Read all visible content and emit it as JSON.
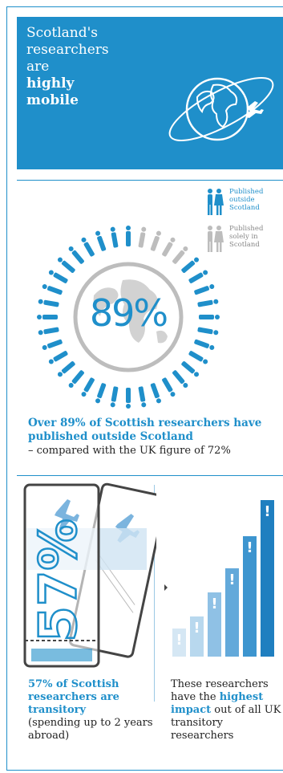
{
  "banner": {
    "line1": "Scotland's",
    "line2": "researchers",
    "line3": "are",
    "line4": "highly",
    "line5": "mobile",
    "icon": "globe-airplane-icon"
  },
  "legend": {
    "outside": "Published outside Scotland",
    "solely": "Published solely in Scotland"
  },
  "ring": {
    "percent_label": "89%",
    "share_outside": 0.89,
    "icon": "world-map-icon"
  },
  "mobility": {
    "headline": "Over 89% of Scottish researchers have published outside Scotland",
    "note": "– compared with the UK figure of 72%"
  },
  "transitory": {
    "ticket_label": "57%",
    "headline": "57% of Scottish researchers are transitory",
    "note": "(spending up to 2 years abroad)"
  },
  "impact": {
    "text_pre": "These researchers have the",
    "highlight": "highest impact",
    "text_post": "out of all UK transitory researchers"
  },
  "colors": {
    "accent": "#1f8fca",
    "grey": "#bdbdbd"
  }
}
